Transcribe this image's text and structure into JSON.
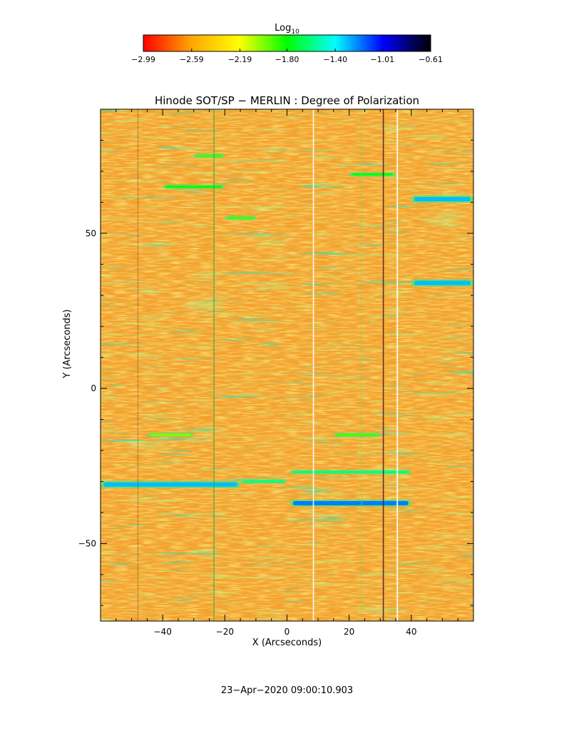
{
  "chart_data": {
    "type": "heatmap",
    "title": "Hinode SOT/SP − MERLIN : Degree of Polarization",
    "xlabel": "X (Arcseconds)",
    "ylabel": "Y (Arcseconds)",
    "xlim": [
      -60,
      60
    ],
    "ylim": [
      -75,
      90
    ],
    "x_ticks": [
      -40,
      -20,
      0,
      20,
      40
    ],
    "x_tick_labels": [
      "−40",
      "−20",
      "0",
      "20",
      "40"
    ],
    "y_ticks": [
      -50,
      0,
      50
    ],
    "y_tick_labels": [
      "−50",
      "0",
      "50"
    ],
    "colorbar": {
      "label_base": "Log",
      "label_subscript": "10",
      "colormap": "rainbow (red → yellow → green → cyan → blue → black)",
      "range": [
        -2.99,
        -0.61
      ],
      "tick_values": [
        -2.99,
        -2.59,
        -2.19,
        -1.8,
        -1.4,
        -1.01,
        -0.61
      ],
      "tick_labels": [
        "−2.99",
        "−2.59",
        "−2.19",
        "−1.80",
        "−1.40",
        "−1.01",
        "−0.61"
      ],
      "colors": [
        "#ff0000",
        "#ffa500",
        "#ffff00",
        "#00ff00",
        "#00ffff",
        "#0000ff",
        "#000000"
      ]
    },
    "background_level": -2.6,
    "colors": {
      "background_field": "#f3a22e",
      "features": "#00d8a0",
      "strong_features": "#1a50ff",
      "slit_dark": "#602020",
      "slit_light": "#ffffff"
    },
    "features": [
      {
        "x": [
          -60,
          -15
        ],
        "y": -31,
        "value": -1.3
      },
      {
        "x": [
          -15,
          0
        ],
        "y": -30,
        "value": -1.6
      },
      {
        "x": [
          1,
          40
        ],
        "y": -37,
        "value": -1.2
      },
      {
        "x": [
          1,
          40
        ],
        "y": -27,
        "value": -1.6
      },
      {
        "x": [
          40,
          60
        ],
        "y": 34,
        "value": -1.3
      },
      {
        "x": [
          40,
          60
        ],
        "y": 61,
        "value": -1.3
      },
      {
        "x": [
          -40,
          -20
        ],
        "y": 65,
        "value": -1.8
      },
      {
        "x": [
          -20,
          -10
        ],
        "y": 55,
        "value": -1.9
      },
      {
        "x": [
          -30,
          -20
        ],
        "y": 75,
        "value": -1.9
      },
      {
        "x": [
          20,
          35
        ],
        "y": 69,
        "value": -1.8
      },
      {
        "x": [
          -45,
          -30
        ],
        "y": -15,
        "value": -2.0
      },
      {
        "x": [
          15,
          30
        ],
        "y": -15,
        "value": -1.9
      }
    ]
  },
  "timestamp": "23−Apr−2020 09:00:10.903"
}
